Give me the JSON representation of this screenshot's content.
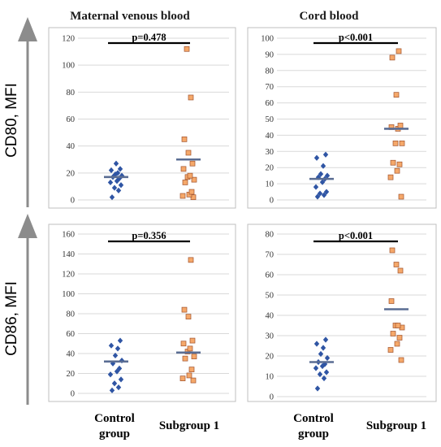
{
  "figure": {
    "column_titles": [
      "Maternal venous blood",
      "Cord blood"
    ],
    "row_labels": [
      "CD80, MFI",
      "CD86, MFI"
    ],
    "x_categories": [
      {
        "line1": "Control",
        "line2": "group"
      },
      {
        "line1": "Subgroup 1",
        "line2": ""
      }
    ]
  },
  "colors": {
    "control_marker": "#2f55a4",
    "subgroup_marker": "#f5a86a",
    "subgroup_marker_edge": "#a0522d",
    "mean_line": "#5a6d93",
    "p_line": "#000000",
    "panel_border": "#bfbfbf",
    "gridline": "#d9d9d9",
    "arrow": "#8c8c8c"
  },
  "chart_data": [
    {
      "type": "scatter",
      "panel": "top-left",
      "categories": [
        "Control group",
        "Subgroup 1"
      ],
      "ylim": [
        0,
        120
      ],
      "yticks": [
        0,
        20,
        40,
        60,
        80,
        100,
        120
      ],
      "grid": true,
      "p_value": "p=0.478",
      "series": [
        {
          "category": "Control group",
          "values": [
            2,
            7,
            9,
            11,
            13,
            14,
            16,
            17,
            18,
            19,
            20,
            22,
            23,
            27
          ],
          "mean": 17
        },
        {
          "category": "Subgroup 1",
          "values": [
            2,
            3,
            4,
            6,
            13,
            15,
            17,
            18,
            23,
            27,
            35,
            45,
            76,
            112
          ],
          "mean": 30
        }
      ]
    },
    {
      "type": "scatter",
      "panel": "top-right",
      "categories": [
        "Control group",
        "Subgroup 1"
      ],
      "ylim": [
        0,
        100
      ],
      "yticks": [
        0,
        10,
        20,
        30,
        40,
        50,
        60,
        70,
        80,
        90,
        100
      ],
      "grid": true,
      "p_value": "p<0.001",
      "series": [
        {
          "category": "Control group",
          "values": [
            2,
            3,
            4,
            5,
            8,
            11,
            13,
            14,
            15,
            16,
            21,
            26,
            28
          ],
          "mean": 13
        },
        {
          "category": "Subgroup 1",
          "values": [
            2,
            14,
            18,
            22,
            23,
            35,
            35,
            44,
            45,
            46,
            65,
            88,
            92
          ],
          "mean": 44
        }
      ]
    },
    {
      "type": "scatter",
      "panel": "bottom-left",
      "categories": [
        "Control group",
        "Subgroup 1"
      ],
      "ylim": [
        0,
        160
      ],
      "yticks": [
        0,
        20,
        40,
        60,
        80,
        100,
        120,
        140,
        160
      ],
      "grid": true,
      "p_value": "p=0.356",
      "series": [
        {
          "category": "Control group",
          "values": [
            3,
            6,
            10,
            14,
            19,
            22,
            25,
            30,
            33,
            38,
            45,
            48,
            53
          ],
          "mean": 32
        },
        {
          "category": "Subgroup 1",
          "values": [
            13,
            15,
            18,
            24,
            35,
            37,
            42,
            45,
            50,
            53,
            77,
            84,
            134
          ],
          "mean": 41
        }
      ]
    },
    {
      "type": "scatter",
      "panel": "bottom-right",
      "categories": [
        "Control group",
        "Subgroup 1"
      ],
      "ylim": [
        0,
        80
      ],
      "yticks": [
        0,
        10,
        20,
        30,
        40,
        50,
        60,
        70,
        80
      ],
      "grid": true,
      "p_value": "p<0.001",
      "series": [
        {
          "category": "Control group",
          "values": [
            4,
            9,
            11,
            12,
            14,
            15,
            16,
            17,
            19,
            21,
            24,
            26,
            28
          ],
          "mean": 17
        },
        {
          "category": "Subgroup 1",
          "values": [
            18,
            23,
            26,
            29,
            31,
            34,
            35,
            35,
            47,
            62,
            65,
            72
          ],
          "mean": 43
        }
      ]
    }
  ]
}
